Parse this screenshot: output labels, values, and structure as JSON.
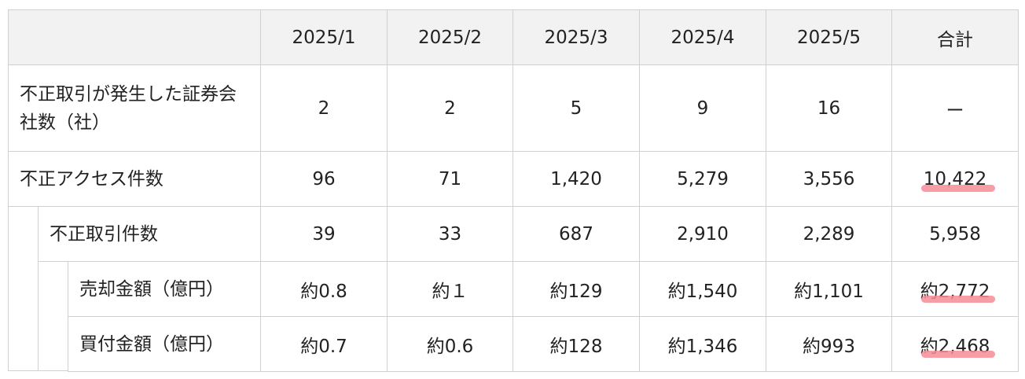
{
  "table": {
    "columns": [
      "2025/1",
      "2025/2",
      "2025/3",
      "2025/4",
      "2025/5",
      "合計"
    ],
    "rows": [
      {
        "label": "不正取引が発生した証券会社数（社）",
        "cells": [
          "2",
          "2",
          "5",
          "9",
          "16",
          "ー"
        ]
      },
      {
        "label": "不正アクセス件数",
        "cells": [
          "96",
          "71",
          "1,420",
          "5,279",
          "3,556",
          "10,422"
        ]
      },
      {
        "label": "不正取引件数",
        "cells": [
          "39",
          "33",
          "687",
          "2,910",
          "2,289",
          "5,958"
        ]
      },
      {
        "label": "売却金額（億円）",
        "cells": [
          "約0.8",
          "約１",
          "約129",
          "約1,540",
          "約1,101",
          "約2,772"
        ]
      },
      {
        "label": "買付金額（億円）",
        "cells": [
          "約0.7",
          "約0.6",
          "約128",
          "約1,346",
          "約993",
          "約2,468"
        ]
      }
    ]
  }
}
